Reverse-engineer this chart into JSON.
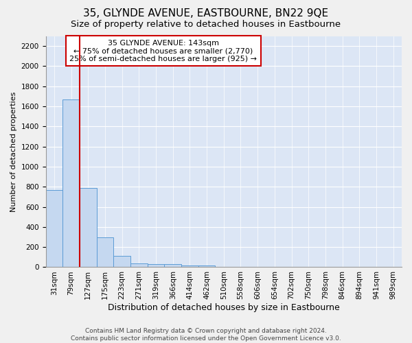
{
  "title": "35, GLYNDE AVENUE, EASTBOURNE, BN22 9QE",
  "subtitle": "Size of property relative to detached houses in Eastbourne",
  "xlabel": "Distribution of detached houses by size in Eastbourne",
  "ylabel": "Number of detached properties",
  "footer1": "Contains HM Land Registry data © Crown copyright and database right 2024.",
  "footer2": "Contains public sector information licensed under the Open Government Licence v3.0.",
  "categories": [
    "31sqm",
    "79sqm",
    "127sqm",
    "175sqm",
    "223sqm",
    "271sqm",
    "319sqm",
    "366sqm",
    "414sqm",
    "462sqm",
    "510sqm",
    "558sqm",
    "606sqm",
    "654sqm",
    "702sqm",
    "750sqm",
    "798sqm",
    "846sqm",
    "894sqm",
    "941sqm",
    "989sqm"
  ],
  "values": [
    770,
    1670,
    790,
    295,
    110,
    40,
    30,
    30,
    20,
    20,
    0,
    0,
    0,
    0,
    0,
    0,
    0,
    0,
    0,
    0,
    0
  ],
  "bar_color": "#c5d8f0",
  "bar_edge_color": "#5b9bd5",
  "figure_bg": "#f0f0f0",
  "plot_bg": "#dce6f5",
  "grid_color": "#ffffff",
  "vline_x_index": 1,
  "vline_color": "#cc0000",
  "ylim": [
    0,
    2300
  ],
  "yticks": [
    0,
    200,
    400,
    600,
    800,
    1000,
    1200,
    1400,
    1600,
    1800,
    2000,
    2200
  ],
  "annotation_title": "35 GLYNDE AVENUE: 143sqm",
  "annotation_line1": "← 75% of detached houses are smaller (2,770)",
  "annotation_line2": "25% of semi-detached houses are larger (925) →",
  "annotation_box_color": "#ffffff",
  "annotation_border_color": "#cc0000",
  "title_fontsize": 11,
  "subtitle_fontsize": 9.5,
  "annotation_fontsize": 8,
  "xlabel_fontsize": 9,
  "ylabel_fontsize": 8,
  "tick_fontsize": 7.5,
  "footer_fontsize": 6.5
}
